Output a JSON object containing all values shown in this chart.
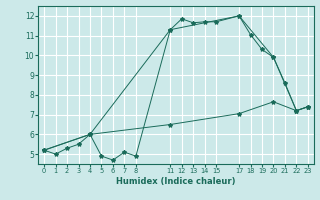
{
  "xlabel": "Humidex (Indice chaleur)",
  "bg_color": "#cce9e9",
  "line_color": "#1a6b5a",
  "grid_color": "#ffffff",
  "xlim": [
    -0.5,
    23.5
  ],
  "ylim": [
    4.5,
    12.5
  ],
  "xticks": [
    0,
    1,
    2,
    3,
    4,
    5,
    6,
    7,
    8,
    11,
    12,
    13,
    14,
    15,
    17,
    18,
    19,
    20,
    21,
    22,
    23
  ],
  "yticks": [
    5,
    6,
    7,
    8,
    9,
    10,
    11,
    12
  ],
  "line1_x": [
    0,
    1,
    2,
    3,
    4,
    5,
    6,
    7,
    8,
    11,
    12,
    13,
    14,
    15,
    17,
    18,
    19,
    20,
    21,
    22,
    23
  ],
  "line1_y": [
    5.2,
    5.0,
    5.3,
    5.5,
    6.0,
    4.9,
    4.7,
    5.1,
    4.9,
    11.3,
    11.85,
    11.65,
    11.7,
    11.7,
    12.0,
    11.05,
    10.3,
    9.9,
    8.6,
    7.2,
    7.4
  ],
  "line2_x": [
    0,
    4,
    11,
    17,
    20,
    22,
    23
  ],
  "line2_y": [
    5.2,
    6.0,
    11.3,
    12.0,
    9.9,
    7.2,
    7.4
  ],
  "line3_x": [
    0,
    4,
    11,
    17,
    20,
    22,
    23
  ],
  "line3_y": [
    5.2,
    6.0,
    6.5,
    7.05,
    7.65,
    7.2,
    7.4
  ]
}
